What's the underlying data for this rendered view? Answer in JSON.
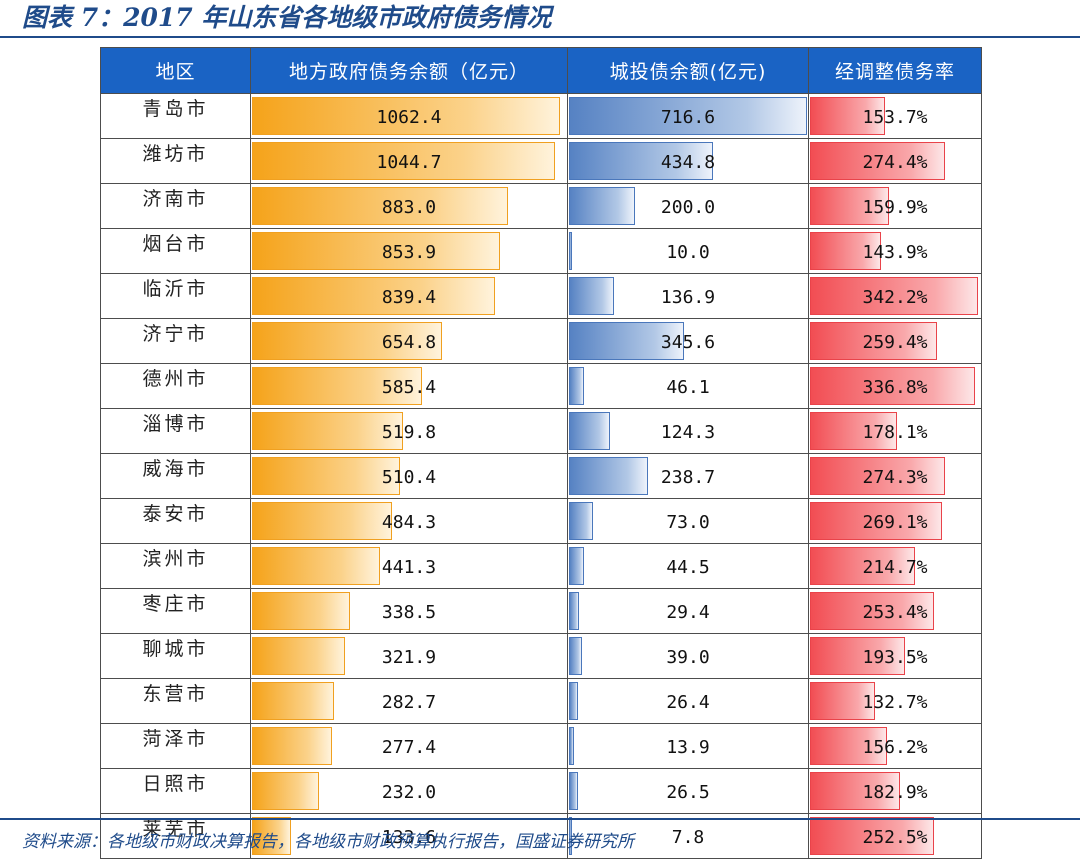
{
  "figure": {
    "title": "图表 7：2017 年山东省各地级市政府债务情况",
    "source": "资料来源：各地级市财政决算报告，各地级市财政预算执行报告，国盛证券研究所"
  },
  "colors": {
    "header_bg": "#1a63c4",
    "title_blue": "#1f4b8a",
    "gov_bar": "#f5a31a",
    "cti_bar": "#5682c3",
    "ratio_bar": "#f24d53"
  },
  "chart_data": {
    "type": "table",
    "columns": [
      "地区",
      "地方政府债务余额（亿元）",
      "城投债余额(亿元)",
      "经调整债务率"
    ],
    "rows": [
      {
        "region": "青岛市",
        "gov_debt": 1062.4,
        "gov_debt_text": "1062.4",
        "chengtou": 716.6,
        "chengtou_text": "716.6",
        "ratio": 153.7,
        "ratio_text": "153.7%"
      },
      {
        "region": "潍坊市",
        "gov_debt": 1044.7,
        "gov_debt_text": "1044.7",
        "chengtou": 434.8,
        "chengtou_text": "434.8",
        "ratio": 274.4,
        "ratio_text": "274.4%"
      },
      {
        "region": "济南市",
        "gov_debt": 883.0,
        "gov_debt_text": "883.0",
        "chengtou": 200.0,
        "chengtou_text": "200.0",
        "ratio": 159.9,
        "ratio_text": "159.9%"
      },
      {
        "region": "烟台市",
        "gov_debt": 853.9,
        "gov_debt_text": "853.9",
        "chengtou": 10.0,
        "chengtou_text": "10.0",
        "ratio": 143.9,
        "ratio_text": "143.9%"
      },
      {
        "region": "临沂市",
        "gov_debt": 839.4,
        "gov_debt_text": "839.4",
        "chengtou": 136.9,
        "chengtou_text": "136.9",
        "ratio": 342.2,
        "ratio_text": "342.2%"
      },
      {
        "region": "济宁市",
        "gov_debt": 654.8,
        "gov_debt_text": "654.8",
        "chengtou": 345.6,
        "chengtou_text": "345.6",
        "ratio": 259.4,
        "ratio_text": "259.4%"
      },
      {
        "region": "德州市",
        "gov_debt": 585.4,
        "gov_debt_text": "585.4",
        "chengtou": 46.1,
        "chengtou_text": "46.1",
        "ratio": 336.8,
        "ratio_text": "336.8%"
      },
      {
        "region": "淄博市",
        "gov_debt": 519.8,
        "gov_debt_text": "519.8",
        "chengtou": 124.3,
        "chengtou_text": "124.3",
        "ratio": 178.1,
        "ratio_text": "178.1%"
      },
      {
        "region": "威海市",
        "gov_debt": 510.4,
        "gov_debt_text": "510.4",
        "chengtou": 238.7,
        "chengtou_text": "238.7",
        "ratio": 274.3,
        "ratio_text": "274.3%"
      },
      {
        "region": "泰安市",
        "gov_debt": 484.3,
        "gov_debt_text": "484.3",
        "chengtou": 73.0,
        "chengtou_text": "73.0",
        "ratio": 269.1,
        "ratio_text": "269.1%"
      },
      {
        "region": "滨州市",
        "gov_debt": 441.3,
        "gov_debt_text": "441.3",
        "chengtou": 44.5,
        "chengtou_text": "44.5",
        "ratio": 214.7,
        "ratio_text": "214.7%"
      },
      {
        "region": "枣庄市",
        "gov_debt": 338.5,
        "gov_debt_text": "338.5",
        "chengtou": 29.4,
        "chengtou_text": "29.4",
        "ratio": 253.4,
        "ratio_text": "253.4%"
      },
      {
        "region": "聊城市",
        "gov_debt": 321.9,
        "gov_debt_text": "321.9",
        "chengtou": 39.0,
        "chengtou_text": "39.0",
        "ratio": 193.5,
        "ratio_text": "193.5%"
      },
      {
        "region": "东营市",
        "gov_debt": 282.7,
        "gov_debt_text": "282.7",
        "chengtou": 26.4,
        "chengtou_text": "26.4",
        "ratio": 132.7,
        "ratio_text": "132.7%"
      },
      {
        "region": "菏泽市",
        "gov_debt": 277.4,
        "gov_debt_text": "277.4",
        "chengtou": 13.9,
        "chengtou_text": "13.9",
        "ratio": 156.2,
        "ratio_text": "156.2%"
      },
      {
        "region": "日照市",
        "gov_debt": 232.0,
        "gov_debt_text": "232.0",
        "chengtou": 26.5,
        "chengtou_text": "26.5",
        "ratio": 182.9,
        "ratio_text": "182.9%"
      },
      {
        "region": "莱芜市",
        "gov_debt": 133.6,
        "gov_debt_text": "133.6",
        "chengtou": 7.8,
        "chengtou_text": "7.8",
        "ratio": 252.5,
        "ratio_text": "252.5%"
      }
    ]
  }
}
